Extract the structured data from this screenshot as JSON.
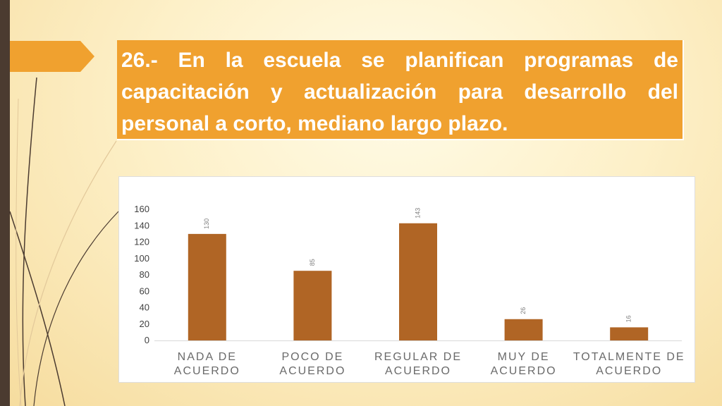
{
  "title": "26.- En la escuela se planifican programas de capacitación y actualización para desarrollo del personal a corto, mediano largo plazo.",
  "colors": {
    "bar": "#b06525",
    "title_bg": "#f0a12f",
    "left_bar": "#4b3b30"
  },
  "chart_data": {
    "type": "bar",
    "categories": [
      "NADA DE ACUERDO",
      "POCO DE ACUERDO",
      "REGULAR DE ACUERDO",
      "MUY DE ACUERDO",
      "TOTALMENTE DE ACUERDO"
    ],
    "category_lines": [
      [
        "NADA DE",
        "ACUERDO"
      ],
      [
        "POCO DE",
        "ACUERDO"
      ],
      [
        "REGULAR DE",
        "ACUERDO"
      ],
      [
        "MUY DE",
        "ACUERDO"
      ],
      [
        "TOTALMENTE DE",
        "ACUERDO"
      ]
    ],
    "values": [
      130,
      85,
      143,
      26,
      16
    ],
    "ylim": [
      0,
      160
    ],
    "yticks": [
      0,
      20,
      40,
      60,
      80,
      100,
      120,
      140,
      160
    ],
    "title": "",
    "xlabel": "",
    "ylabel": "",
    "grid": false,
    "legend": "none"
  }
}
